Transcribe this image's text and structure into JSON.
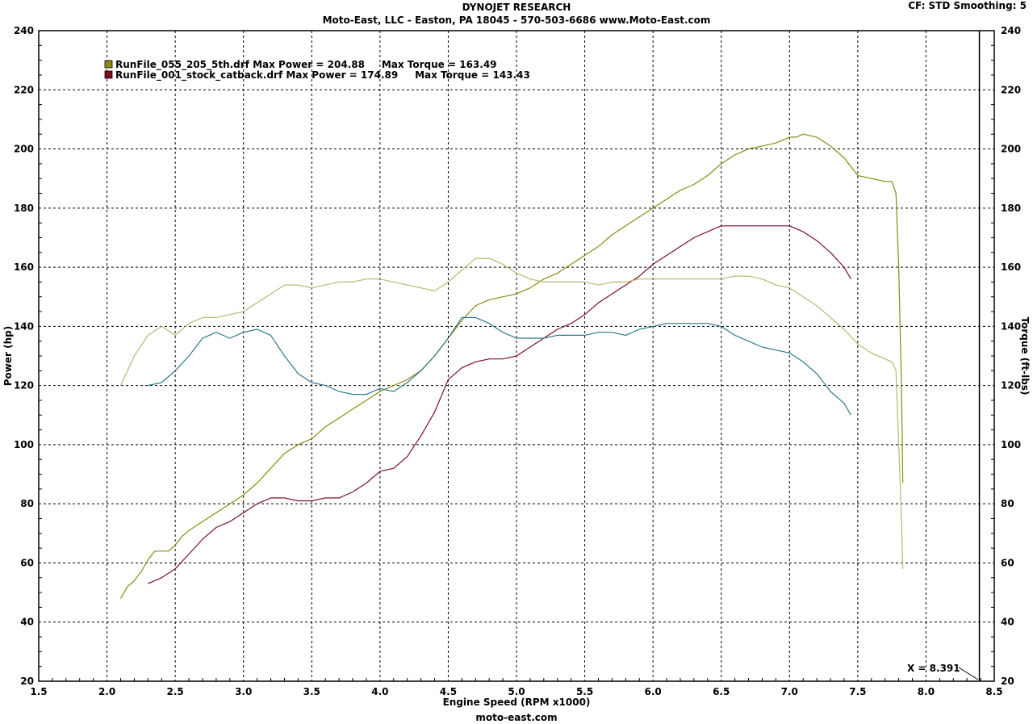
{
  "header": {
    "title": "DYNOJET RESEARCH",
    "subtitle": "Moto-East, LLC - Easton, PA 18045 - 570-503-6686 www.Moto-East.com",
    "settings": "CF: STD  Smoothing: 5"
  },
  "footer": "moto-east.com",
  "cursor_readout": "X = 8.391",
  "chart_data": {
    "type": "line",
    "title": "DYNOJET RESEARCH",
    "xlabel": "Engine Speed (RPM x1000)",
    "ylabel": "Power (hp)",
    "y2label": "Torque (ft-lbs)",
    "xlim": [
      1.5,
      8.5
    ],
    "ylim": [
      20,
      240
    ],
    "y2lim": [
      20,
      240
    ],
    "x_ticks": [
      "1.5",
      "2.0",
      "2.5",
      "3.0",
      "3.5",
      "4.0",
      "4.5",
      "5.0",
      "5.5",
      "6.0",
      "6.5",
      "7.0",
      "7.5",
      "8.0",
      "8.5"
    ],
    "y_ticks": [
      "20",
      "40",
      "60",
      "80",
      "100",
      "120",
      "140",
      "160",
      "180",
      "200",
      "220",
      "240"
    ],
    "grid": true,
    "cursor_x": 8.391,
    "legend": {
      "placement": "top-left",
      "entries": [
        "RunFile_055_205_5th.drf Max Power = 204.88     Max Torque = 163.49",
        "RunFile_001_stock_catback.drf Max Power = 174.89     Max Torque = 143.43"
      ]
    },
    "series": [
      {
        "run": "RunFile_055_205_5th.drf",
        "quantity": "Power",
        "axis": "left",
        "color": "#8a8a10",
        "points": [
          [
            2.1,
            48
          ],
          [
            2.15,
            52
          ],
          [
            2.2,
            54
          ],
          [
            2.25,
            57
          ],
          [
            2.3,
            61
          ],
          [
            2.35,
            64
          ],
          [
            2.4,
            64
          ],
          [
            2.45,
            64
          ],
          [
            2.5,
            66
          ],
          [
            2.55,
            69
          ],
          [
            2.6,
            71
          ],
          [
            2.7,
            74
          ],
          [
            2.8,
            77
          ],
          [
            2.9,
            80
          ],
          [
            3.0,
            83
          ],
          [
            3.1,
            87
          ],
          [
            3.2,
            92
          ],
          [
            3.3,
            97
          ],
          [
            3.4,
            100
          ],
          [
            3.5,
            102
          ],
          [
            3.6,
            106
          ],
          [
            3.7,
            109
          ],
          [
            3.8,
            112
          ],
          [
            3.9,
            115
          ],
          [
            4.0,
            118
          ],
          [
            4.1,
            120
          ],
          [
            4.2,
            122
          ],
          [
            4.3,
            125
          ],
          [
            4.4,
            130
          ],
          [
            4.5,
            136
          ],
          [
            4.6,
            142
          ],
          [
            4.7,
            147
          ],
          [
            4.8,
            149
          ],
          [
            4.9,
            150
          ],
          [
            5.0,
            151
          ],
          [
            5.1,
            153
          ],
          [
            5.2,
            156
          ],
          [
            5.3,
            158
          ],
          [
            5.4,
            161
          ],
          [
            5.5,
            164
          ],
          [
            5.6,
            167
          ],
          [
            5.7,
            171
          ],
          [
            5.8,
            174
          ],
          [
            5.9,
            177
          ],
          [
            6.0,
            180
          ],
          [
            6.1,
            183
          ],
          [
            6.2,
            186
          ],
          [
            6.3,
            188
          ],
          [
            6.4,
            191
          ],
          [
            6.5,
            195
          ],
          [
            6.6,
            198
          ],
          [
            6.7,
            200
          ],
          [
            6.8,
            201
          ],
          [
            6.9,
            202
          ],
          [
            7.0,
            204
          ],
          [
            7.05,
            204
          ],
          [
            7.1,
            205
          ],
          [
            7.2,
            204
          ],
          [
            7.3,
            201
          ],
          [
            7.4,
            197
          ],
          [
            7.45,
            194
          ],
          [
            7.5,
            191
          ],
          [
            7.6,
            190
          ],
          [
            7.7,
            189
          ],
          [
            7.75,
            189
          ],
          [
            7.78,
            185
          ],
          [
            7.8,
            160
          ],
          [
            7.82,
            120
          ],
          [
            7.83,
            87
          ]
        ]
      },
      {
        "run": "RunFile_001_stock_catback.drf",
        "quantity": "Power",
        "axis": "left",
        "color": "#7a1020",
        "points": [
          [
            2.3,
            53
          ],
          [
            2.4,
            55
          ],
          [
            2.5,
            58
          ],
          [
            2.6,
            63
          ],
          [
            2.7,
            68
          ],
          [
            2.8,
            72
          ],
          [
            2.9,
            74
          ],
          [
            3.0,
            77
          ],
          [
            3.1,
            80
          ],
          [
            3.2,
            82
          ],
          [
            3.3,
            82
          ],
          [
            3.4,
            81
          ],
          [
            3.5,
            81
          ],
          [
            3.6,
            82
          ],
          [
            3.7,
            82
          ],
          [
            3.8,
            84
          ],
          [
            3.9,
            87
          ],
          [
            4.0,
            91
          ],
          [
            4.1,
            92
          ],
          [
            4.2,
            96
          ],
          [
            4.3,
            103
          ],
          [
            4.4,
            111
          ],
          [
            4.5,
            122
          ],
          [
            4.6,
            126
          ],
          [
            4.7,
            128
          ],
          [
            4.8,
            129
          ],
          [
            4.9,
            129
          ],
          [
            5.0,
            130
          ],
          [
            5.1,
            133
          ],
          [
            5.2,
            136
          ],
          [
            5.3,
            139
          ],
          [
            5.4,
            141
          ],
          [
            5.5,
            144
          ],
          [
            5.6,
            148
          ],
          [
            5.7,
            151
          ],
          [
            5.8,
            154
          ],
          [
            5.9,
            157
          ],
          [
            6.0,
            161
          ],
          [
            6.1,
            164
          ],
          [
            6.2,
            167
          ],
          [
            6.3,
            170
          ],
          [
            6.4,
            172
          ],
          [
            6.5,
            174
          ],
          [
            6.6,
            174
          ],
          [
            6.7,
            174
          ],
          [
            6.8,
            174
          ],
          [
            6.9,
            174
          ],
          [
            7.0,
            174
          ],
          [
            7.1,
            172
          ],
          [
            7.2,
            169
          ],
          [
            7.3,
            165
          ],
          [
            7.4,
            160
          ],
          [
            7.45,
            156
          ]
        ]
      },
      {
        "run": "RunFile_055_205_5th.drf",
        "quantity": "Torque",
        "axis": "right",
        "color": "#b8b870",
        "points": [
          [
            2.1,
            120
          ],
          [
            2.2,
            130
          ],
          [
            2.3,
            137
          ],
          [
            2.4,
            140
          ],
          [
            2.5,
            137
          ],
          [
            2.6,
            141
          ],
          [
            2.7,
            143
          ],
          [
            2.8,
            143
          ],
          [
            2.9,
            144
          ],
          [
            3.0,
            145
          ],
          [
            3.1,
            148
          ],
          [
            3.2,
            151
          ],
          [
            3.3,
            154
          ],
          [
            3.4,
            154
          ],
          [
            3.5,
            153
          ],
          [
            3.6,
            154
          ],
          [
            3.7,
            155
          ],
          [
            3.8,
            155
          ],
          [
            3.9,
            156
          ],
          [
            4.0,
            156
          ],
          [
            4.1,
            155
          ],
          [
            4.2,
            154
          ],
          [
            4.3,
            153
          ],
          [
            4.4,
            152
          ],
          [
            4.5,
            155
          ],
          [
            4.6,
            159
          ],
          [
            4.7,
            163
          ],
          [
            4.8,
            163
          ],
          [
            4.9,
            161
          ],
          [
            5.0,
            158
          ],
          [
            5.1,
            156
          ],
          [
            5.2,
            155
          ],
          [
            5.3,
            155
          ],
          [
            5.4,
            155
          ],
          [
            5.5,
            155
          ],
          [
            5.6,
            154
          ],
          [
            5.7,
            155
          ],
          [
            5.8,
            155
          ],
          [
            5.9,
            156
          ],
          [
            6.0,
            156
          ],
          [
            6.1,
            156
          ],
          [
            6.2,
            156
          ],
          [
            6.3,
            156
          ],
          [
            6.4,
            156
          ],
          [
            6.5,
            156
          ],
          [
            6.6,
            157
          ],
          [
            6.7,
            157
          ],
          [
            6.8,
            156
          ],
          [
            6.9,
            154
          ],
          [
            7.0,
            153
          ],
          [
            7.1,
            150
          ],
          [
            7.2,
            147
          ],
          [
            7.3,
            143
          ],
          [
            7.4,
            139
          ],
          [
            7.5,
            134
          ],
          [
            7.6,
            131
          ],
          [
            7.7,
            129
          ],
          [
            7.75,
            128
          ],
          [
            7.78,
            125
          ],
          [
            7.8,
            100
          ],
          [
            7.82,
            75
          ],
          [
            7.83,
            58
          ]
        ]
      },
      {
        "run": "RunFile_001_stock_catback.drf",
        "quantity": "Torque",
        "axis": "right",
        "color": "#2a7a8a",
        "points": [
          [
            2.3,
            120
          ],
          [
            2.4,
            121
          ],
          [
            2.5,
            125
          ],
          [
            2.6,
            130
          ],
          [
            2.7,
            136
          ],
          [
            2.8,
            138
          ],
          [
            2.9,
            136
          ],
          [
            3.0,
            138
          ],
          [
            3.1,
            139
          ],
          [
            3.2,
            137
          ],
          [
            3.3,
            130
          ],
          [
            3.4,
            124
          ],
          [
            3.5,
            121
          ],
          [
            3.6,
            120
          ],
          [
            3.7,
            118
          ],
          [
            3.8,
            117
          ],
          [
            3.9,
            117
          ],
          [
            4.0,
            119
          ],
          [
            4.1,
            118
          ],
          [
            4.2,
            121
          ],
          [
            4.3,
            125
          ],
          [
            4.4,
            130
          ],
          [
            4.5,
            136
          ],
          [
            4.6,
            143
          ],
          [
            4.7,
            143
          ],
          [
            4.8,
            141
          ],
          [
            4.9,
            138
          ],
          [
            5.0,
            136
          ],
          [
            5.1,
            136
          ],
          [
            5.2,
            136
          ],
          [
            5.3,
            137
          ],
          [
            5.4,
            137
          ],
          [
            5.5,
            137
          ],
          [
            5.6,
            138
          ],
          [
            5.7,
            138
          ],
          [
            5.8,
            137
          ],
          [
            5.9,
            139
          ],
          [
            6.0,
            140
          ],
          [
            6.1,
            141
          ],
          [
            6.2,
            141
          ],
          [
            6.3,
            141
          ],
          [
            6.4,
            141
          ],
          [
            6.5,
            140
          ],
          [
            6.6,
            137
          ],
          [
            6.7,
            135
          ],
          [
            6.8,
            133
          ],
          [
            6.9,
            132
          ],
          [
            7.0,
            131
          ],
          [
            7.1,
            128
          ],
          [
            7.2,
            124
          ],
          [
            7.3,
            118
          ],
          [
            7.4,
            114
          ],
          [
            7.45,
            110
          ]
        ]
      }
    ]
  }
}
